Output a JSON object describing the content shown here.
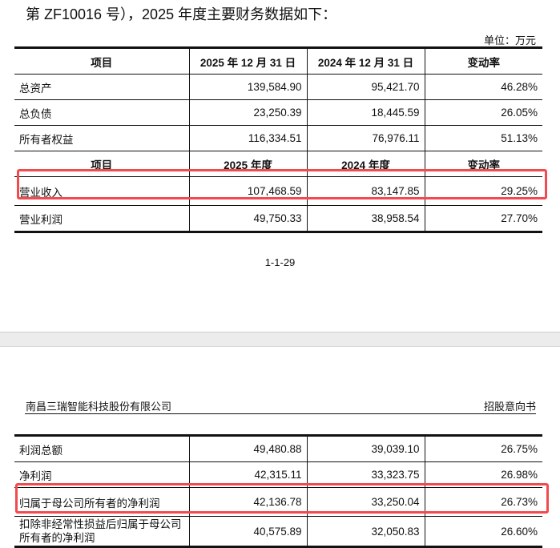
{
  "intro_text": "第 ZF10016 号），2025 年度主要财务数据如下：",
  "unit": "单位：万元",
  "table1": {
    "header1": [
      "项目",
      "2025 年 12 月 31 日",
      "2024 年 12 月 31 日",
      "变动率"
    ],
    "rows1": [
      [
        "总资产",
        "139,584.90",
        "95,421.70",
        "46.28%"
      ],
      [
        "总负债",
        "23,250.39",
        "18,445.59",
        "26.05%"
      ],
      [
        "所有者权益",
        "116,334.51",
        "76,976.11",
        "51.13%"
      ]
    ],
    "header2": [
      "项目",
      "2025 年度",
      "2024 年度",
      "变动率"
    ],
    "rows2": [
      [
        "营业收入",
        "107,468.59",
        "83,147.85",
        "29.25%"
      ],
      [
        "营业利润",
        "49,750.33",
        "38,958.54",
        "27.70%"
      ]
    ]
  },
  "page_number": "1-1-29",
  "page_header": {
    "company": "南昌三瑞智能科技股份有限公司",
    "doc_type": "招股意向书"
  },
  "table2": {
    "rows": [
      [
        "利润总额",
        "49,480.88",
        "39,039.10",
        "26.75%"
      ],
      [
        "净利润",
        "42,315.11",
        "33,323.75",
        "26.98%"
      ],
      [
        "归属于母公司所有者的净利润",
        "42,136.78",
        "33,250.04",
        "26.73%"
      ],
      [
        "扣除非经常性损益后归属于母公司所有者的净利润",
        "40,575.89",
        "32,050.83",
        "26.60%"
      ]
    ]
  },
  "highlight_color": "#f24b4f",
  "highlighted_rows": [
    "营业收入",
    "归属于母公司所有者的净利润"
  ]
}
